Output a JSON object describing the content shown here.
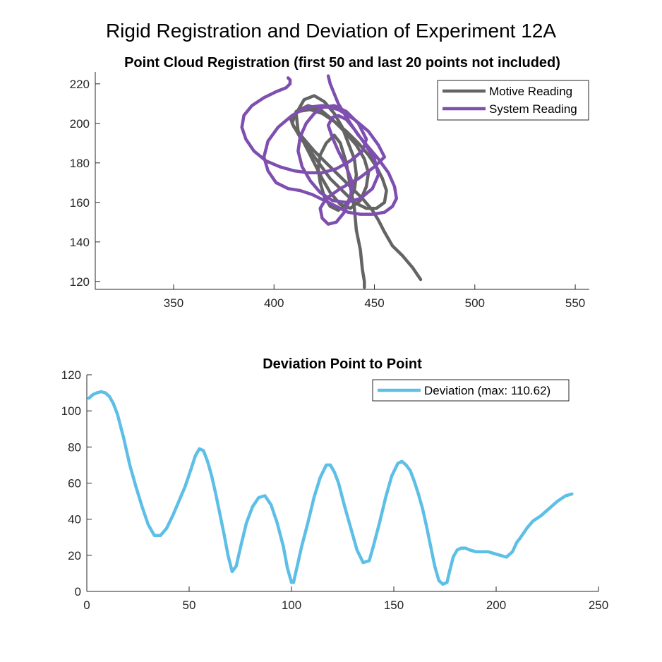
{
  "figure": {
    "title": "Rigid Registration and Deviation of Experiment 12A"
  },
  "chart_data": [
    {
      "type": "line",
      "title": "Point Cloud Registration (first 50 and last 20 points not included)",
      "xlabel": "",
      "ylabel": "",
      "xlim": [
        311,
        557
      ],
      "ylim": [
        116,
        226
      ],
      "xticks": [
        350,
        400,
        450,
        500,
        550
      ],
      "yticks": [
        120,
        140,
        160,
        180,
        200,
        220
      ],
      "grid": false,
      "legend_position": "top-right",
      "series": [
        {
          "name": "Motive Reading",
          "color": "#646464",
          "x": [
            473,
            469,
            464,
            459,
            455,
            452,
            449,
            444,
            438,
            432,
            426,
            420,
            415,
            410,
            408,
            412,
            418,
            424,
            430,
            436,
            442,
            447,
            451,
            454,
            456,
            455,
            451,
            446,
            440,
            434,
            428,
            423,
            418,
            413,
            409,
            411,
            417,
            423,
            429,
            435,
            441,
            445,
            447,
            446,
            443,
            438,
            433,
            428,
            424,
            420,
            416,
            412,
            411,
            415,
            420,
            425,
            430,
            434,
            437,
            440,
            441,
            440,
            436,
            432,
            428,
            425,
            423,
            422,
            423,
            426,
            430,
            433,
            436,
            438,
            440,
            441,
            443,
            444,
            445,
            445
          ],
          "y": [
            121,
            127,
            133,
            138,
            145,
            151,
            156,
            162,
            168,
            174,
            180,
            186,
            192,
            198,
            203,
            206,
            207,
            205,
            201,
            196,
            190,
            184,
            178,
            172,
            166,
            160,
            157,
            157,
            160,
            166,
            172,
            179,
            186,
            193,
            200,
            206,
            209,
            207,
            202,
            196,
            189,
            182,
            175,
            168,
            161,
            157,
            159,
            165,
            172,
            180,
            188,
            196,
            205,
            212,
            214,
            211,
            205,
            198,
            190,
            182,
            174,
            166,
            159,
            156,
            158,
            163,
            170,
            177,
            184,
            190,
            194,
            190,
            180,
            168,
            157,
            146,
            136,
            126,
            120,
            117
          ]
        },
        {
          "name": "System Reading",
          "color": "#7E4FAE",
          "x": [
            427,
            428,
            430,
            432,
            435,
            438,
            442,
            447,
            452,
            457,
            460,
            461,
            459,
            455,
            449,
            443,
            437,
            431,
            425,
            419,
            413,
            407,
            401,
            397,
            395,
            397,
            402,
            409,
            416,
            424,
            432,
            440,
            447,
            452,
            455,
            450,
            442,
            433,
            426,
            423,
            424,
            427,
            431,
            435,
            438,
            439,
            436,
            432,
            429,
            427,
            429,
            432,
            436,
            440,
            445,
            450,
            452,
            449,
            443,
            436,
            429,
            423,
            418,
            414,
            412,
            413,
            416,
            420,
            424,
            430,
            436,
            442,
            446,
            444,
            438,
            431,
            424,
            417,
            410,
            403,
            396,
            390,
            386,
            384,
            385,
            389,
            395,
            401,
            406,
            408,
            408,
            407
          ],
          "y": [
            224,
            220,
            215,
            210,
            205,
            200,
            194,
            188,
            182,
            175,
            168,
            162,
            158,
            155,
            154,
            154,
            155,
            158,
            161,
            164,
            166,
            167,
            170,
            176,
            183,
            191,
            198,
            204,
            208,
            209,
            207,
            202,
            196,
            189,
            183,
            178,
            172,
            167,
            162,
            157,
            152,
            149,
            150,
            155,
            162,
            170,
            178,
            186,
            193,
            199,
            203,
            204,
            202,
            197,
            190,
            182,
            174,
            167,
            162,
            160,
            161,
            165,
            171,
            178,
            186,
            193,
            200,
            205,
            208,
            209,
            206,
            200,
            192,
            186,
            181,
            177,
            175,
            175,
            176,
            178,
            181,
            186,
            192,
            198,
            204,
            209,
            213,
            216,
            218,
            220,
            222,
            223
          ]
        }
      ]
    },
    {
      "type": "line",
      "title": "Deviation Point to Point",
      "xlabel": "",
      "ylabel": "",
      "xlim": [
        0,
        250
      ],
      "ylim": [
        0,
        120
      ],
      "xticks": [
        0,
        50,
        100,
        150,
        200,
        250
      ],
      "yticks": [
        0,
        20,
        40,
        60,
        80,
        100,
        120
      ],
      "grid": false,
      "legend_position": "top-right",
      "series": [
        {
          "name": "Deviation (max: 110.62)",
          "color": "#5EBFE6",
          "x": [
            1,
            3,
            5,
            7,
            9,
            11,
            13,
            15,
            18,
            21,
            24,
            27,
            30,
            33,
            36,
            39,
            42,
            45,
            48,
            51,
            53,
            55,
            57,
            59,
            61,
            63,
            65,
            67,
            69,
            71,
            73,
            75,
            78,
            81,
            84,
            87,
            90,
            93,
            96,
            98,
            100,
            101,
            103,
            105,
            108,
            111,
            114,
            117,
            119,
            121,
            123,
            126,
            129,
            132,
            135,
            138,
            140,
            143,
            146,
            149,
            152,
            154,
            156,
            158,
            160,
            162,
            164,
            166,
            168,
            170,
            172,
            174,
            176,
            177,
            179,
            181,
            183,
            185,
            187,
            190,
            193,
            196,
            199,
            202,
            205,
            208,
            210,
            212,
            215,
            218,
            222,
            226,
            230,
            234,
            237
          ],
          "y": [
            107,
            109,
            110,
            110.6,
            110,
            108,
            104,
            98,
            85,
            70,
            58,
            47,
            37,
            31,
            31,
            35,
            42,
            50,
            58,
            68,
            75,
            79,
            78,
            72,
            64,
            54,
            43,
            32,
            20,
            11,
            14,
            24,
            38,
            47,
            52,
            53,
            48,
            38,
            25,
            13,
            5,
            5,
            15,
            25,
            38,
            52,
            63,
            70,
            70,
            66,
            60,
            47,
            35,
            23,
            16,
            17,
            25,
            38,
            52,
            64,
            71,
            72,
            70,
            67,
            61,
            54,
            46,
            36,
            25,
            14,
            6,
            4,
            5,
            10,
            19,
            23,
            24,
            24,
            23,
            22,
            22,
            22,
            21,
            20,
            19,
            22,
            27,
            30,
            35,
            39,
            42,
            46,
            50,
            53,
            54
          ]
        }
      ]
    }
  ]
}
